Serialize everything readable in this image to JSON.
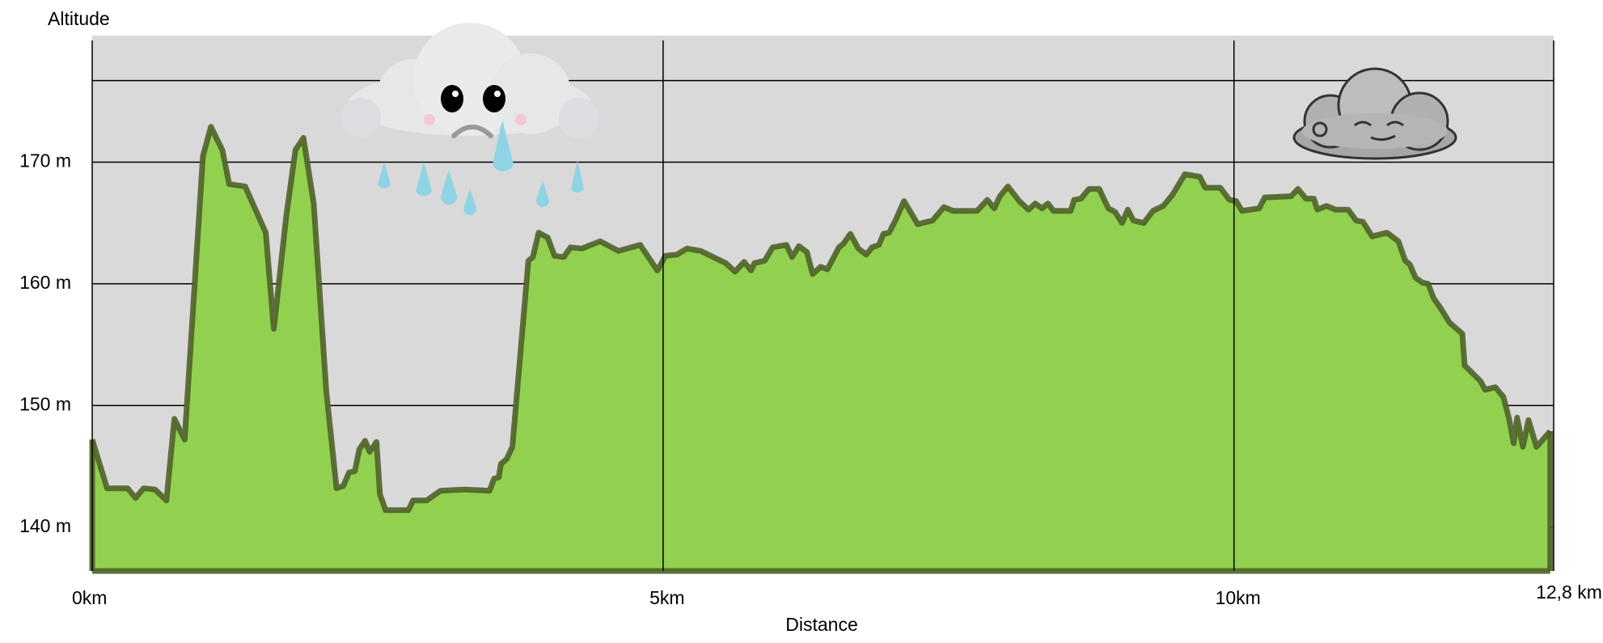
{
  "chart_data": {
    "type": "area",
    "y_label": "Altitude",
    "x_label": "Distance",
    "fill_color": "#92d050",
    "line_color": "#4f6228",
    "background": "#d9d9d9",
    "grid": true,
    "xlim": [
      0,
      12.8
    ],
    "xticks": [
      {
        "value": 0,
        "label": "0km"
      },
      {
        "value": 5,
        "label": "5km"
      },
      {
        "value": 10,
        "label": "10km"
      },
      {
        "value": 12.8,
        "label": "12,8 km"
      }
    ],
    "ylim": [
      136.4,
      180.4
    ],
    "yticks": [
      {
        "value": 140,
        "label": "140 m"
      },
      {
        "value": 150,
        "label": "150 m"
      },
      {
        "value": 160,
        "label": "160 m"
      },
      {
        "value": 170,
        "label": "170 m"
      },
      {
        "value": 176.7,
        "label": null
      }
    ],
    "x": [
      0,
      0.13,
      0.31,
      0.38,
      0.45,
      0.55,
      0.65,
      0.72,
      0.81,
      0.97,
      1.04,
      1.14,
      1.2,
      1.34,
      1.52,
      1.59,
      1.7,
      1.78,
      1.85,
      1.94,
      2.05,
      2.14,
      2.2,
      2.25,
      2.3,
      2.34,
      2.39,
      2.43,
      2.49,
      2.52,
      2.57,
      2.77,
      2.81,
      2.93,
      3.05,
      3.26,
      3.48,
      3.52,
      3.56,
      3.58,
      3.63,
      3.68,
      3.82,
      3.86,
      3.91,
      3.99,
      4.05,
      4.13,
      4.19,
      4.29,
      4.45,
      4.61,
      4.8,
      4.95,
      5.02,
      5.12,
      5.21,
      5.33,
      5.55,
      5.63,
      5.71,
      5.77,
      5.8,
      5.89,
      5.96,
      6.08,
      6.13,
      6.19,
      6.26,
      6.31,
      6.38,
      6.44,
      6.54,
      6.58,
      6.64,
      6.71,
      6.78,
      6.83,
      6.89,
      6.93,
      6.98,
      7.04,
      7.11,
      7.23,
      7.36,
      7.46,
      7.54,
      7.75,
      7.84,
      7.9,
      7.95,
      8.02,
      8.12,
      8.2,
      8.26,
      8.32,
      8.37,
      8.42,
      8.57,
      8.6,
      8.66,
      8.73,
      8.82,
      8.9,
      8.96,
      9.02,
      9.07,
      9.12,
      9.21,
      9.29,
      9.38,
      9.46,
      9.57,
      9.7,
      9.75,
      9.88,
      9.96,
      10.02,
      10.07,
      10.22,
      10.27,
      10.5,
      10.56,
      10.63,
      10.7,
      10.73,
      10.81,
      10.89,
      11.0,
      11.07,
      11.13,
      11.21,
      11.34,
      11.44,
      11.5,
      11.54,
      11.59,
      11.65,
      11.7,
      11.75,
      11.81,
      11.89,
      12.0,
      12.02,
      12.16,
      12.2,
      12.29,
      12.36,
      12.41,
      12.45,
      12.48,
      12.53,
      12.58,
      12.65,
      12.77
    ],
    "values": [
      147.2,
      143.2,
      143.2,
      142.4,
      143.2,
      143.1,
      142.2,
      148.9,
      147.2,
      170.5,
      172.9,
      171.0,
      168.2,
      168.0,
      164.2,
      156.3,
      165.6,
      171.0,
      172.0,
      166.6,
      151.2,
      143.2,
      143.4,
      144.5,
      144.6,
      146.4,
      147.1,
      146.2,
      147.0,
      142.7,
      141.4,
      141.4,
      142.2,
      142.2,
      143.0,
      143.1,
      143.0,
      144.0,
      144.1,
      145.2,
      145.6,
      146.6,
      161.9,
      162.2,
      164.2,
      163.8,
      162.3,
      162.2,
      163.0,
      162.9,
      163.5,
      162.7,
      163.2,
      161.1,
      162.3,
      162.4,
      162.9,
      162.7,
      161.7,
      161.0,
      161.8,
      161.1,
      161.7,
      161.9,
      163.0,
      163.2,
      162.2,
      163.1,
      162.6,
      160.8,
      161.4,
      161.2,
      163.0,
      163.3,
      164.1,
      162.9,
      162.4,
      163.0,
      163.2,
      164.1,
      164.2,
      165.3,
      166.8,
      164.9,
      165.2,
      166.3,
      166.0,
      166.0,
      166.9,
      166.2,
      167.2,
      168.0,
      166.8,
      166.1,
      166.6,
      166.2,
      166.6,
      166.0,
      166.0,
      166.9,
      167.0,
      167.8,
      167.8,
      166.2,
      165.9,
      165.0,
      166.1,
      165.2,
      165.0,
      166.0,
      166.4,
      167.3,
      169.0,
      168.8,
      167.9,
      167.9,
      166.9,
      166.8,
      166.0,
      166.2,
      167.1,
      167.2,
      167.8,
      167.0,
      167.0,
      166.1,
      166.4,
      166.1,
      166.1,
      165.2,
      165.1,
      163.9,
      164.2,
      163.5,
      161.9,
      161.6,
      160.5,
      160.1,
      160.0,
      158.8,
      158.0,
      156.8,
      155.9,
      153.3,
      152.0,
      151.3,
      151.5,
      150.7,
      148.9,
      146.9,
      149.0,
      146.6,
      148.8,
      146.6,
      147.9
    ]
  }
}
